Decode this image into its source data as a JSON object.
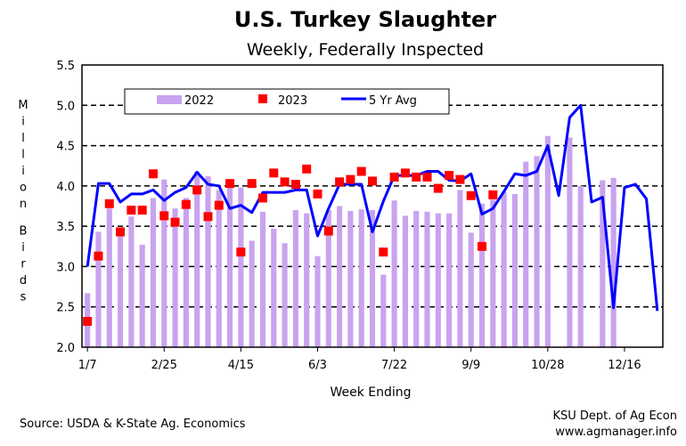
{
  "colors": {
    "bar_2022": "#c9a3ef",
    "point_2023": "#ff0000",
    "line_avg": "#0000ff",
    "grid": "#000000",
    "plot_bg": "#ffffff"
  },
  "chart_data": {
    "type": "bar",
    "title": "U.S. Turkey Slaughter",
    "subtitle": "Weekly, Federally Inspected",
    "xlabel": "Week Ending",
    "ylabel": "Million Birds",
    "ylim": [
      2.0,
      5.5
    ],
    "yticks": [
      "2.0",
      "2.5",
      "3.0",
      "3.5",
      "4.0",
      "4.5",
      "5.0",
      "5.5"
    ],
    "xtick_labels": [
      "1/7",
      "2/25",
      "4/15",
      "6/3",
      "7/22",
      "9/9",
      "10/28",
      "12/16"
    ],
    "xtick_weeks": [
      1,
      8,
      15,
      22,
      29,
      36,
      43,
      50
    ],
    "grid": true,
    "legend_position": "top",
    "weeks": 53,
    "series": [
      {
        "name": "2022",
        "kind": "bar",
        "values": [
          2.67,
          3.43,
          3.72,
          3.38,
          3.62,
          3.27,
          3.85,
          4.08,
          3.72,
          3.85,
          4.18,
          4.12,
          3.95,
          4.08,
          3.98,
          3.32,
          3.68,
          3.47,
          3.29,
          3.7,
          3.66,
          3.13,
          3.7,
          3.75,
          3.69,
          3.71,
          3.7,
          2.9,
          3.82,
          3.63,
          3.69,
          3.68,
          3.66,
          3.66,
          3.95,
          3.42,
          3.78,
          3.83,
          3.93,
          3.9,
          4.3,
          4.37,
          4.62,
          null,
          4.6,
          4.0,
          null,
          4.07,
          4.1,
          null,
          null,
          null,
          null
        ]
      },
      {
        "name": "2023",
        "kind": "scatter",
        "values": [
          2.32,
          3.13,
          3.78,
          3.43,
          3.7,
          3.7,
          4.15,
          3.63,
          3.55,
          3.77,
          3.95,
          3.62,
          3.76,
          4.03,
          3.18,
          4.03,
          3.85,
          4.16,
          4.05,
          4.02,
          4.21,
          3.9,
          3.44,
          4.05,
          4.08,
          4.18,
          4.06,
          3.18,
          4.11,
          4.16,
          4.11,
          4.11,
          3.97,
          4.13,
          4.08,
          3.88,
          3.25,
          3.89
        ]
      },
      {
        "name": "5 Yr Avg",
        "kind": "line",
        "values": [
          3.0,
          4.03,
          4.03,
          3.8,
          3.9,
          3.9,
          3.95,
          3.82,
          3.92,
          3.98,
          4.17,
          4.02,
          4.0,
          3.72,
          3.76,
          3.67,
          3.92,
          3.92,
          3.92,
          3.95,
          3.95,
          3.38,
          3.72,
          4.02,
          4.02,
          4.02,
          3.43,
          3.81,
          4.13,
          4.13,
          4.13,
          4.18,
          4.18,
          4.07,
          4.06,
          4.15,
          3.65,
          3.72,
          3.93,
          4.15,
          4.13,
          4.18,
          4.5,
          3.88,
          4.85,
          5.0,
          3.8,
          3.86,
          2.49,
          3.98,
          4.02,
          3.84,
          2.45
        ]
      }
    ],
    "source_text": "Source:  USDA & K-State Ag. Economics",
    "credit_line1": "KSU Dept. of Ag Econ",
    "credit_line2": "www.agmanager.info"
  }
}
